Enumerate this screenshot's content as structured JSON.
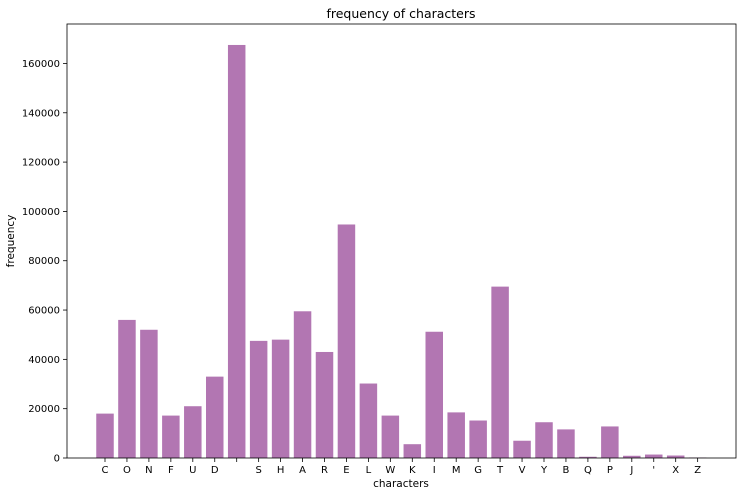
{
  "chart_data": {
    "type": "bar",
    "title": "frequency of characters",
    "xlabel": "characters",
    "ylabel": "frequency",
    "categories": [
      "C",
      "O",
      "N",
      "F",
      "U",
      "D",
      " ",
      "S",
      "H",
      "A",
      "R",
      "E",
      "L",
      "W",
      "K",
      "I",
      "M",
      "G",
      "T",
      "V",
      "Y",
      "B",
      "Q",
      "P",
      "J",
      "'",
      "X",
      "Z"
    ],
    "values": [
      18000,
      56000,
      52000,
      17200,
      21000,
      33000,
      167500,
      47500,
      48000,
      59500,
      43000,
      94700,
      30200,
      17200,
      5600,
      51200,
      18500,
      15200,
      69500,
      7000,
      14500,
      11600,
      500,
      12800,
      900,
      1400,
      1000,
      200
    ],
    "ylim": [
      0,
      176000
    ],
    "yticks": [
      0,
      20000,
      40000,
      60000,
      80000,
      100000,
      120000,
      140000,
      160000
    ],
    "ytick_labels": [
      "0",
      "20000",
      "40000",
      "60000",
      "80000",
      "100000",
      "120000",
      "140000",
      "160000"
    ],
    "bar_color": "#b276b2",
    "grid": false,
    "legend": false
  }
}
